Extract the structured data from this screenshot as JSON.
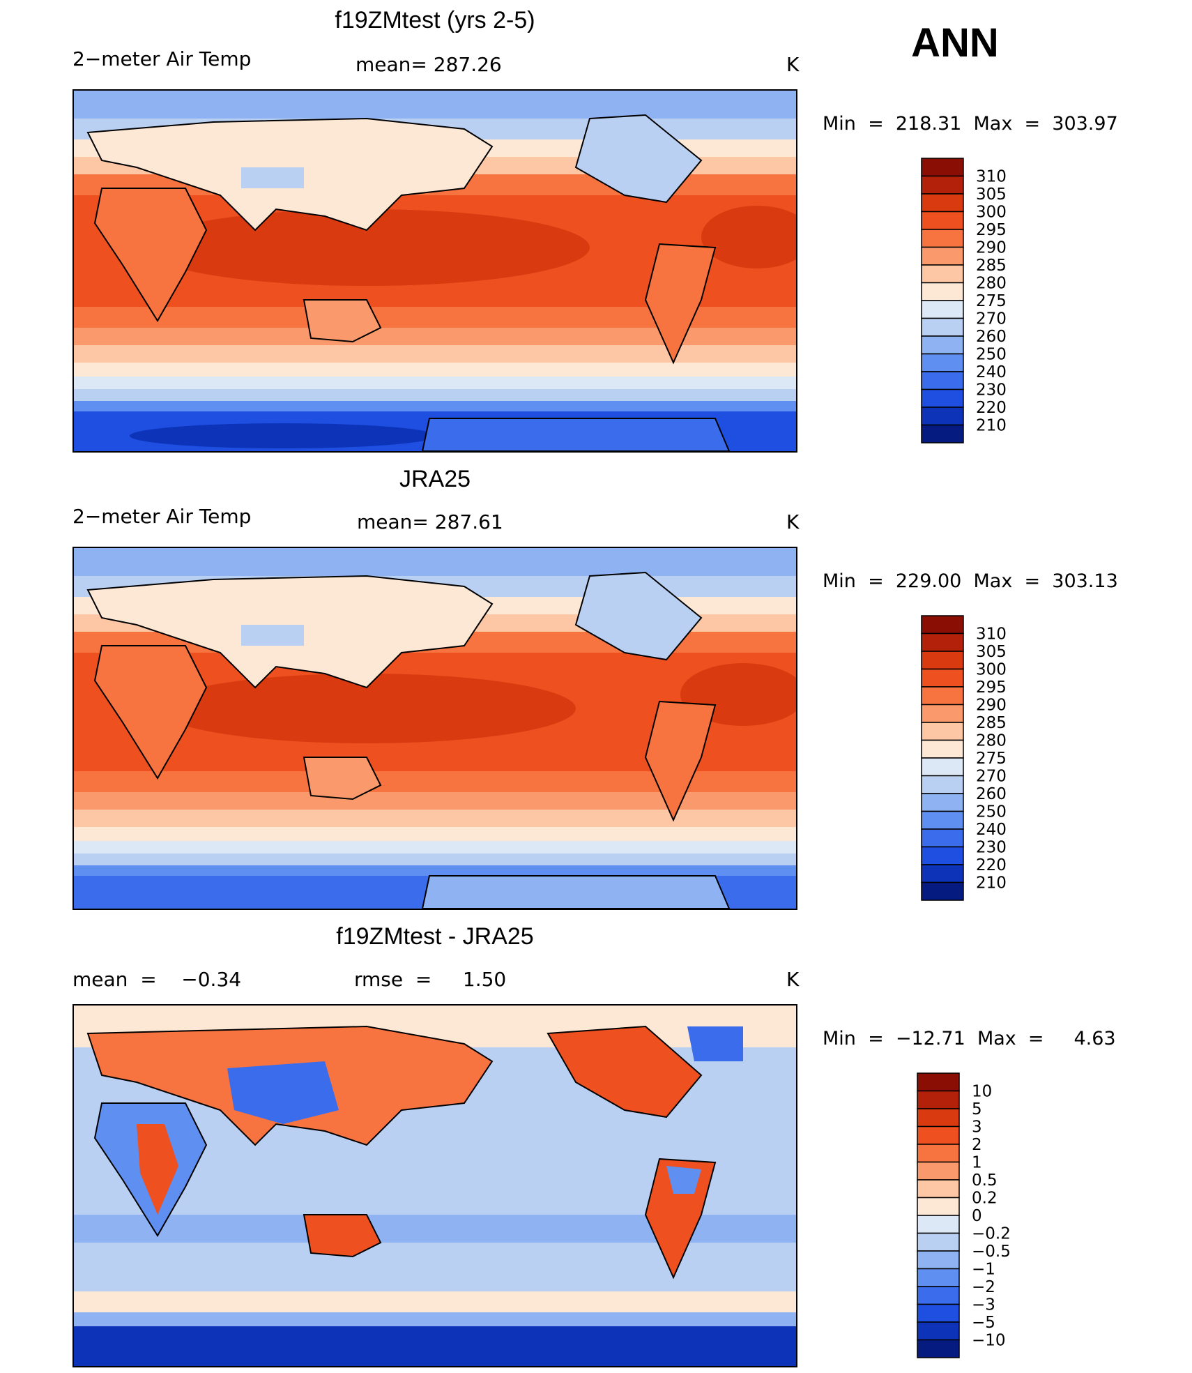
{
  "season": "ANN",
  "panels": [
    {
      "title": "f19ZMtest (yrs 2-5)",
      "left_label": "2−meter Air Temp",
      "center_label": "mean= 287.26",
      "units": "K",
      "stats": "Min  =  218.31  Max  =  303.97",
      "type": "absolute"
    },
    {
      "title": "JRA25",
      "left_label": "2−meter Air Temp",
      "center_label": "mean= 287.61",
      "units": "K",
      "stats": "Min  =  229.00  Max  =  303.13",
      "type": "absolute"
    },
    {
      "title": "f19ZMtest - JRA25",
      "left_label": "mean  =    −0.34",
      "center_label": "rmse  =     1.50",
      "units": "K",
      "stats": "Min  =  −12.71  Max  =     4.63",
      "type": "difference"
    }
  ],
  "colorbar_abs": {
    "labels": [
      "310",
      "305",
      "300",
      "295",
      "290",
      "285",
      "280",
      "275",
      "270",
      "260",
      "250",
      "240",
      "230",
      "220",
      "210"
    ],
    "colors": [
      "#8b0e05",
      "#b3210a",
      "#d93a10",
      "#ee5020",
      "#f7733f",
      "#fa9a6c",
      "#fdc7a5",
      "#fde7d5",
      "#dde8f7",
      "#b9d0f3",
      "#8fb3f2",
      "#5f8ff0",
      "#3a6cec",
      "#1e4fe0",
      "#0d33b8",
      "#061b80"
    ]
  },
  "colorbar_diff": {
    "labels": [
      "10",
      "5",
      "3",
      "2",
      "1",
      "0.5",
      "0.2",
      "0",
      "−0.2",
      "−0.5",
      "−1",
      "−2",
      "−3",
      "−5",
      "−10"
    ],
    "colors": [
      "#8b0e05",
      "#b3210a",
      "#d93a10",
      "#ee5020",
      "#f7733f",
      "#fa9a6c",
      "#fdc7a5",
      "#fde7d5",
      "#dde8f7",
      "#b9d0f3",
      "#8fb3f2",
      "#5f8ff0",
      "#3a6cec",
      "#1e4fe0",
      "#0d33b8",
      "#061b80"
    ]
  },
  "colors": {
    "hot": "#d93a10",
    "warm": "#ee5020",
    "mild": "#f7733f",
    "cool_warm": "#fa9a6c",
    "pale_warm": "#fdc7a5",
    "cream": "#fde7d5",
    "pale_blue": "#dde8f7",
    "light_blue": "#b9d0f3",
    "mid_blue": "#8fb3f2",
    "blue": "#5f8ff0",
    "deep_blue": "#3a6cec",
    "darker_blue": "#1e4fe0",
    "navy": "#0d33b8"
  }
}
